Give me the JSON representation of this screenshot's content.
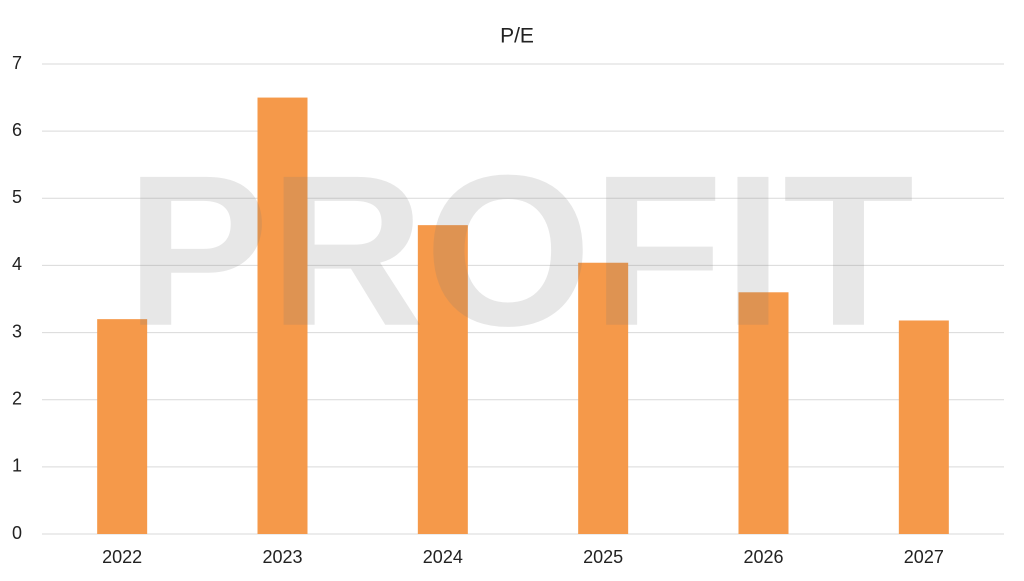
{
  "chart_data": {
    "type": "bar",
    "title": "P/E",
    "watermark": "PROFIT",
    "categories": [
      "2022",
      "2023",
      "2024",
      "2025",
      "2026",
      "2027"
    ],
    "values": [
      3.2,
      6.5,
      4.6,
      4.04,
      3.6,
      3.18
    ],
    "color": "#f5994a",
    "ylim": [
      0,
      7
    ],
    "yticks": [
      0,
      1,
      2,
      3,
      4,
      5,
      6,
      7
    ],
    "grid": true
  }
}
